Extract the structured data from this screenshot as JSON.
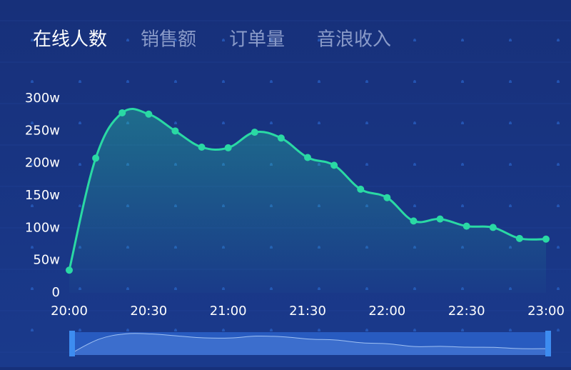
{
  "tabs": [
    "在线人数",
    "销售额",
    "订单量",
    "音浪收入"
  ],
  "active_tab": 0,
  "chart_data": {
    "type": "line",
    "categories": [
      "20:00",
      null,
      null,
      "20:30",
      null,
      null,
      "21:00",
      null,
      null,
      "21:30",
      null,
      null,
      "22:00",
      null,
      null,
      "22:30",
      null,
      null,
      "23:00"
    ],
    "series": [
      {
        "color": "#2ad9a4",
        "values": [
          35,
          208,
          278,
          276,
          250,
          225,
          224,
          248,
          239,
          209,
          197,
          160,
          147,
          111,
          114,
          103,
          101,
          84,
          83
        ]
      }
    ],
    "ylim": [
      0,
      300
    ],
    "yticks": [
      0,
      {
        "value": 50,
        "label": "50w"
      },
      {
        "value": 100,
        "label": "100w"
      },
      {
        "value": 150,
        "label": "150w"
      },
      {
        "value": 200,
        "label": "200w"
      },
      {
        "value": 250,
        "label": "250w"
      },
      {
        "value": 300,
        "label": "300w"
      }
    ],
    "data_zoom": true
  }
}
